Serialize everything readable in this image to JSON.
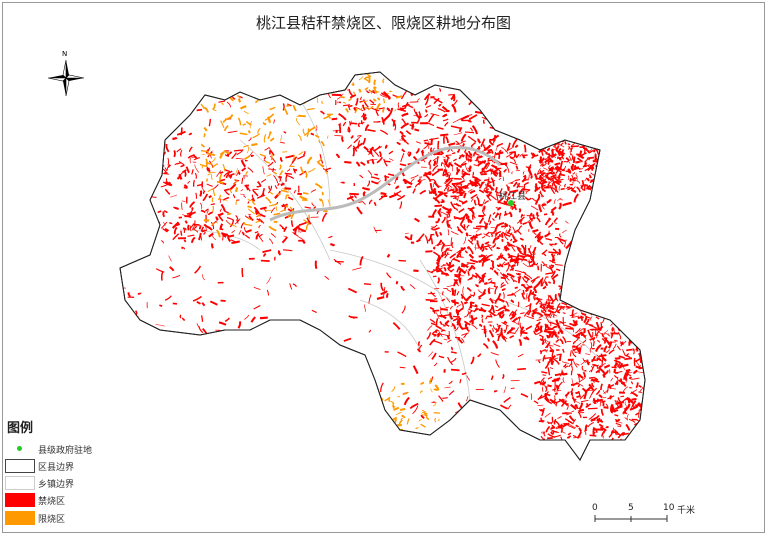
{
  "title": "桃江县秸秆禁烧区、限烧区耕地分布图",
  "north_arrow": {
    "label": "N"
  },
  "county_seat": {
    "label": "桃江县"
  },
  "legend": {
    "title": "图例",
    "items": [
      {
        "label": "县级政府驻地",
        "color": "#22cc22",
        "symbol": "dot"
      },
      {
        "label": "区县边界",
        "color": "#333333",
        "symbol": "box"
      },
      {
        "label": "乡镇边界",
        "color": "#bbbbbb",
        "symbol": "box"
      },
      {
        "label": "禁烧区",
        "color": "#ff0000",
        "symbol": "fill"
      },
      {
        "label": "限烧区",
        "color": "#ff9900",
        "symbol": "fill"
      }
    ]
  },
  "scale_bar": {
    "ticks": [
      "0",
      "5",
      "10"
    ],
    "unit": "千米"
  }
}
